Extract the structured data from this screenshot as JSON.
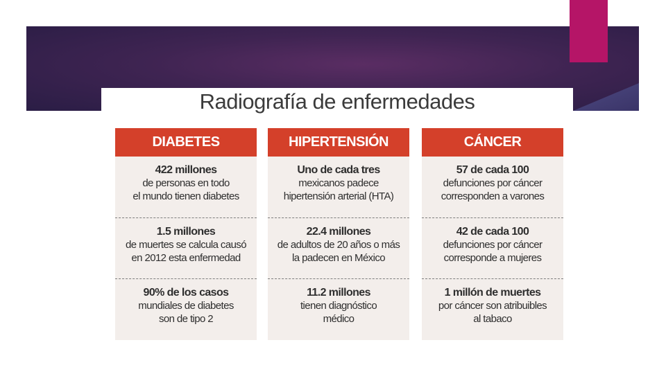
{
  "title": "Radiografía de enfermedades",
  "columns": [
    {
      "header": "DIABETES",
      "cells": [
        {
          "headline": "422 millones",
          "lines": [
            "de personas en todo",
            "el mundo tienen diabetes"
          ]
        },
        {
          "headline": "1.5 millones",
          "lines": [
            "de muertes se calcula causó",
            "en 2012 esta enfermedad"
          ]
        },
        {
          "headline": "90% de los casos",
          "lines": [
            "mundiales de diabetes",
            "son de tipo 2"
          ]
        }
      ]
    },
    {
      "header": "HIPERTENSIÓN",
      "cells": [
        {
          "headline": "Uno de cada tres",
          "lines": [
            "mexicanos padece",
            "hipertensión arterial (HTA)"
          ]
        },
        {
          "headline": "22.4 millones",
          "lines": [
            "de adultos de 20 años o más",
            "la padecen en México"
          ]
        },
        {
          "headline": "11.2 millones",
          "lines": [
            "tienen diagnóstico",
            "médico"
          ]
        }
      ]
    },
    {
      "header": "CÁNCER",
      "cells": [
        {
          "headline": "57 de cada 100",
          "lines": [
            "defunciones por cáncer",
            "corresponden a varones"
          ]
        },
        {
          "headline": "42 de cada 100",
          "lines": [
            "defunciones por cáncer",
            "corresponde a mujeres"
          ]
        },
        {
          "headline": "1 millón de muertes",
          "lines": [
            "por cáncer son atribuibles",
            "al tabaco"
          ]
        }
      ]
    }
  ],
  "colors": {
    "banner": "#3f2452",
    "accent": "#b51567",
    "header_red": "#d4402a",
    "cell_bg": "#f3eeeb"
  }
}
